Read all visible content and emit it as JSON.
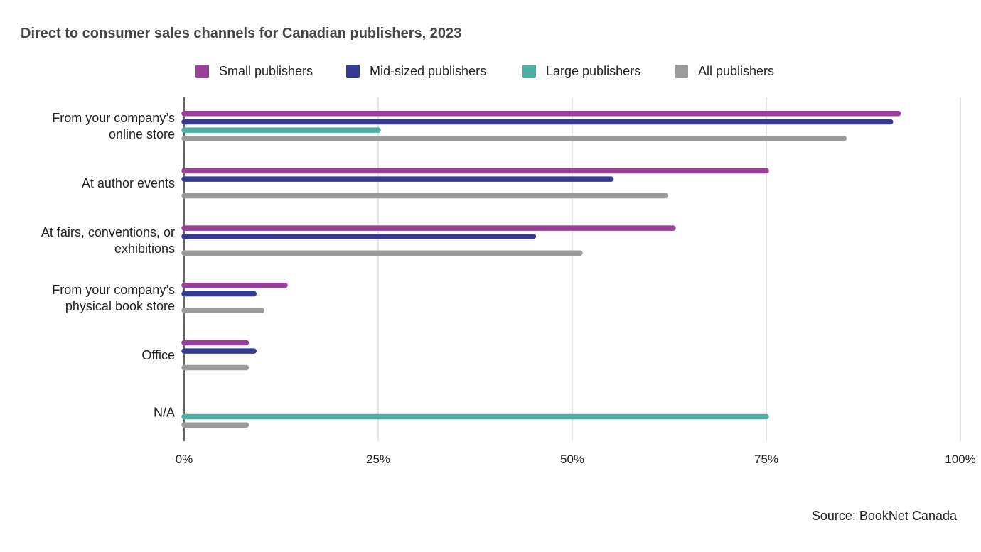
{
  "chart_data": {
    "type": "bar",
    "orientation": "horizontal",
    "title": "Direct to consumer sales channels for Canadian publishers, 2023",
    "categories": [
      [
        "From your company’s",
        "online store"
      ],
      [
        "At author events"
      ],
      [
        "At fairs, conventions, or",
        "exhibitions"
      ],
      [
        "From your company’s",
        "physical book store"
      ],
      [
        "Office"
      ],
      [
        "N/A"
      ]
    ],
    "series": [
      {
        "name": "Small publishers",
        "color": "#9b3f98",
        "values": [
          92,
          75,
          63,
          13,
          8,
          null
        ]
      },
      {
        "name": "Mid-sized publishers",
        "color": "#363a90",
        "values": [
          91,
          55,
          45,
          9,
          9,
          null
        ]
      },
      {
        "name": "Large publishers",
        "color": "#4cb0a2",
        "values": [
          25,
          null,
          null,
          null,
          null,
          75
        ]
      },
      {
        "name": "All publishers",
        "color": "#9b9b9b",
        "values": [
          85,
          62,
          51,
          10,
          8,
          8
        ]
      }
    ],
    "xlim": [
      0,
      100
    ],
    "xticks": [
      "0%",
      "25%",
      "50%",
      "75%",
      "100%"
    ],
    "grid": true,
    "legend_position": "top"
  },
  "source": "Source: BookNet Canada"
}
